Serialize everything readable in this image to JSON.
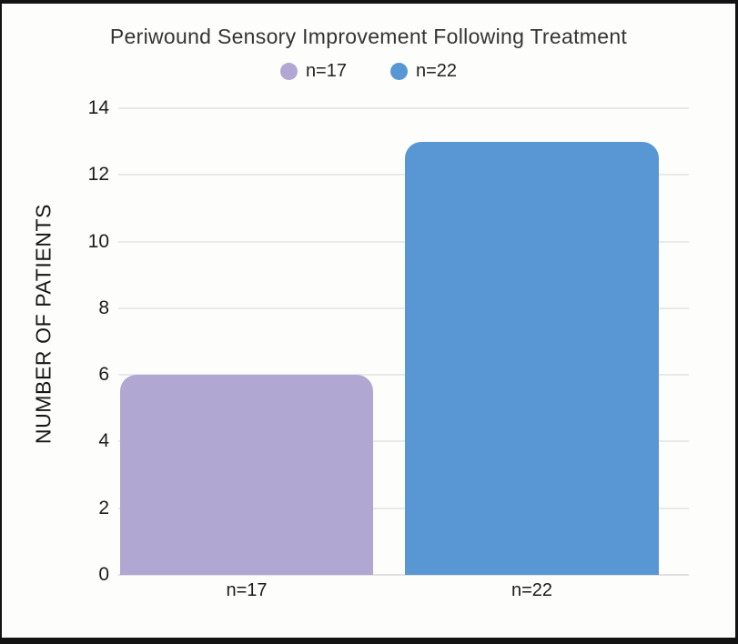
{
  "chart_data": {
    "type": "bar",
    "title": "Periwound Sensory Improvement Following Treatment",
    "ylabel": "NUMBER OF PATIENTS",
    "xlabel": "",
    "categories": [
      "n=17",
      "n=22"
    ],
    "values": [
      6,
      13
    ],
    "bar_colors": [
      "#b0a8d2",
      "#5997d4"
    ],
    "ylim": [
      0,
      14
    ],
    "yticks": [
      0,
      2,
      4,
      6,
      8,
      10,
      12,
      14
    ],
    "grid": "horizontal",
    "legend": {
      "position": "top",
      "entries": [
        {
          "label": "n=17",
          "color": "#b0a8d2"
        },
        {
          "label": "n=22",
          "color": "#5997d4"
        }
      ]
    }
  },
  "colors": {
    "background": "#fdfdfb",
    "frame_border": "#131313",
    "gridline": "#e9e9e9",
    "title_text": "#343434",
    "tick_text": "#1c1c1c"
  }
}
